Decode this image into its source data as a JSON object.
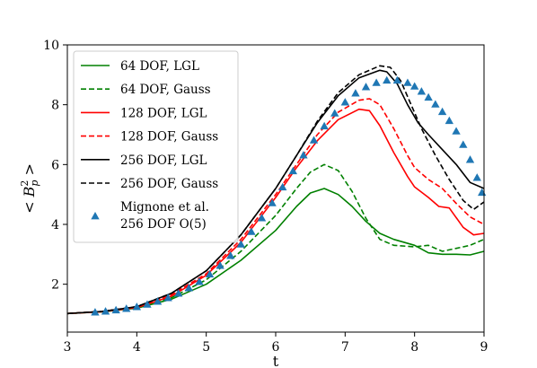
{
  "chart_data": {
    "type": "line",
    "xlabel": "t",
    "ylabel": "< B_p^2 >",
    "xlim": [
      3,
      9
    ],
    "ylim": [
      0.4,
      10
    ],
    "xticks": [
      3,
      4,
      5,
      6,
      7,
      8,
      9
    ],
    "yticks": [
      2,
      4,
      6,
      8,
      10
    ],
    "legend_position": "upper-left",
    "series": [
      {
        "name": "64 DOF, LGL",
        "color": "#008000",
        "style": "solid",
        "points": [
          [
            3.0,
            1.02
          ],
          [
            3.5,
            1.08
          ],
          [
            4.0,
            1.2
          ],
          [
            4.5,
            1.5
          ],
          [
            5.0,
            2.0
          ],
          [
            5.5,
            2.8
          ],
          [
            6.0,
            3.8
          ],
          [
            6.3,
            4.6
          ],
          [
            6.5,
            5.05
          ],
          [
            6.7,
            5.2
          ],
          [
            6.9,
            5.0
          ],
          [
            7.1,
            4.6
          ],
          [
            7.3,
            4.1
          ],
          [
            7.5,
            3.7
          ],
          [
            7.7,
            3.5
          ],
          [
            8.0,
            3.3
          ],
          [
            8.2,
            3.05
          ],
          [
            8.4,
            3.0
          ],
          [
            8.6,
            3.0
          ],
          [
            8.8,
            2.98
          ],
          [
            9.0,
            3.1
          ]
        ]
      },
      {
        "name": "64 DOF, Gauss",
        "color": "#008000",
        "style": "dashed",
        "points": [
          [
            3.0,
            1.02
          ],
          [
            3.5,
            1.08
          ],
          [
            4.0,
            1.2
          ],
          [
            4.5,
            1.55
          ],
          [
            5.0,
            2.15
          ],
          [
            5.5,
            3.1
          ],
          [
            6.0,
            4.3
          ],
          [
            6.3,
            5.2
          ],
          [
            6.5,
            5.75
          ],
          [
            6.7,
            6.0
          ],
          [
            6.9,
            5.8
          ],
          [
            7.1,
            5.1
          ],
          [
            7.3,
            4.2
          ],
          [
            7.5,
            3.5
          ],
          [
            7.7,
            3.3
          ],
          [
            8.0,
            3.25
          ],
          [
            8.2,
            3.3
          ],
          [
            8.4,
            3.1
          ],
          [
            8.6,
            3.2
          ],
          [
            8.8,
            3.3
          ],
          [
            9.0,
            3.5
          ]
        ]
      },
      {
        "name": "128 DOF, LGL",
        "color": "#ff0000",
        "style": "solid",
        "points": [
          [
            3.0,
            1.02
          ],
          [
            3.5,
            1.08
          ],
          [
            4.0,
            1.22
          ],
          [
            4.5,
            1.6
          ],
          [
            5.0,
            2.3
          ],
          [
            5.5,
            3.4
          ],
          [
            6.0,
            4.9
          ],
          [
            6.3,
            5.9
          ],
          [
            6.6,
            6.8
          ],
          [
            6.9,
            7.5
          ],
          [
            7.2,
            7.85
          ],
          [
            7.35,
            7.8
          ],
          [
            7.5,
            7.3
          ],
          [
            7.7,
            6.4
          ],
          [
            7.9,
            5.6
          ],
          [
            8.0,
            5.25
          ],
          [
            8.2,
            4.9
          ],
          [
            8.35,
            4.6
          ],
          [
            8.5,
            4.55
          ],
          [
            8.7,
            3.9
          ],
          [
            8.85,
            3.65
          ],
          [
            9.0,
            3.7
          ]
        ]
      },
      {
        "name": "128 DOF, Gauss",
        "color": "#ff0000",
        "style": "dashed",
        "points": [
          [
            3.0,
            1.02
          ],
          [
            3.5,
            1.09
          ],
          [
            4.0,
            1.25
          ],
          [
            4.5,
            1.65
          ],
          [
            5.0,
            2.35
          ],
          [
            5.5,
            3.5
          ],
          [
            6.0,
            5.0
          ],
          [
            6.3,
            6.0
          ],
          [
            6.6,
            7.0
          ],
          [
            6.9,
            7.75
          ],
          [
            7.2,
            8.15
          ],
          [
            7.35,
            8.2
          ],
          [
            7.5,
            8.0
          ],
          [
            7.7,
            7.2
          ],
          [
            7.9,
            6.3
          ],
          [
            8.0,
            5.9
          ],
          [
            8.2,
            5.5
          ],
          [
            8.4,
            5.2
          ],
          [
            8.6,
            4.7
          ],
          [
            8.8,
            4.25
          ],
          [
            9.0,
            4.0
          ]
        ]
      },
      {
        "name": "256 DOF, LGL",
        "color": "#000000",
        "style": "solid",
        "points": [
          [
            3.0,
            1.02
          ],
          [
            3.5,
            1.09
          ],
          [
            4.0,
            1.25
          ],
          [
            4.5,
            1.7
          ],
          [
            5.0,
            2.45
          ],
          [
            5.5,
            3.65
          ],
          [
            6.0,
            5.2
          ],
          [
            6.3,
            6.3
          ],
          [
            6.6,
            7.4
          ],
          [
            6.9,
            8.3
          ],
          [
            7.2,
            8.9
          ],
          [
            7.5,
            9.15
          ],
          [
            7.6,
            9.1
          ],
          [
            7.75,
            8.7
          ],
          [
            7.9,
            8.0
          ],
          [
            8.05,
            7.4
          ],
          [
            8.2,
            7.0
          ],
          [
            8.4,
            6.5
          ],
          [
            8.6,
            6.0
          ],
          [
            8.8,
            5.4
          ],
          [
            9.0,
            5.2
          ]
        ]
      },
      {
        "name": "256 DOF, Gauss",
        "color": "#000000",
        "style": "dashed",
        "points": [
          [
            3.0,
            1.02
          ],
          [
            3.5,
            1.09
          ],
          [
            4.0,
            1.25
          ],
          [
            4.5,
            1.7
          ],
          [
            5.0,
            2.45
          ],
          [
            5.5,
            3.65
          ],
          [
            6.0,
            5.2
          ],
          [
            6.3,
            6.3
          ],
          [
            6.6,
            7.45
          ],
          [
            6.9,
            8.4
          ],
          [
            7.2,
            9.0
          ],
          [
            7.5,
            9.3
          ],
          [
            7.65,
            9.25
          ],
          [
            7.8,
            8.8
          ],
          [
            7.95,
            8.0
          ],
          [
            8.1,
            7.2
          ],
          [
            8.3,
            6.3
          ],
          [
            8.5,
            5.5
          ],
          [
            8.7,
            4.8
          ],
          [
            8.85,
            4.5
          ],
          [
            9.0,
            4.75
          ]
        ]
      },
      {
        "name": "Mignone et al. 256 DOF O(5)",
        "color": "#1f77b4",
        "style": "markers",
        "marker": "triangle",
        "points": [
          [
            3.4,
            1.05
          ],
          [
            3.55,
            1.08
          ],
          [
            3.7,
            1.12
          ],
          [
            3.85,
            1.17
          ],
          [
            4.0,
            1.23
          ],
          [
            4.15,
            1.31
          ],
          [
            4.3,
            1.41
          ],
          [
            4.45,
            1.53
          ],
          [
            4.6,
            1.68
          ],
          [
            4.75,
            1.86
          ],
          [
            4.9,
            2.07
          ],
          [
            5.05,
            2.32
          ],
          [
            5.2,
            2.61
          ],
          [
            5.35,
            2.94
          ],
          [
            5.5,
            3.32
          ],
          [
            5.65,
            3.74
          ],
          [
            5.8,
            4.2
          ],
          [
            5.95,
            4.7
          ],
          [
            6.1,
            5.23
          ],
          [
            6.25,
            5.77
          ],
          [
            6.4,
            6.3
          ],
          [
            6.55,
            6.8
          ],
          [
            6.7,
            7.27
          ],
          [
            6.85,
            7.7
          ],
          [
            7.0,
            8.07
          ],
          [
            7.15,
            8.37
          ],
          [
            7.3,
            8.58
          ],
          [
            7.45,
            8.72
          ],
          [
            7.6,
            8.8
          ],
          [
            7.75,
            8.8
          ],
          [
            7.9,
            8.72
          ],
          [
            8.0,
            8.6
          ],
          [
            8.1,
            8.43
          ],
          [
            8.2,
            8.23
          ],
          [
            8.3,
            8.0
          ],
          [
            8.4,
            7.75
          ],
          [
            8.5,
            7.45
          ],
          [
            8.6,
            7.1
          ],
          [
            8.7,
            6.65
          ],
          [
            8.8,
            6.15
          ],
          [
            8.9,
            5.55
          ],
          [
            8.97,
            5.05
          ]
        ]
      }
    ],
    "legend": [
      "64 DOF, LGL",
      "64 DOF, Gauss",
      "128 DOF, LGL",
      "128 DOF, Gauss",
      "256 DOF, LGL",
      "256 DOF, Gauss",
      [
        "Mignone et al.",
        "256 DOF O(5)"
      ]
    ]
  }
}
